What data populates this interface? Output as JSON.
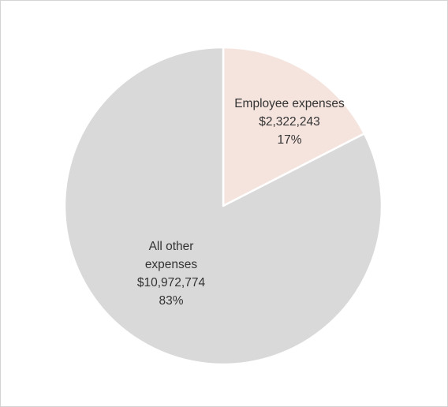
{
  "chart_data": {
    "type": "pie",
    "title": "",
    "slices": [
      {
        "name": "Employee expenses",
        "value": 2322243,
        "value_label": "$2,322,243",
        "percent_label": "17%",
        "name_lines": [
          "Employee expenses"
        ],
        "color": "#f5e4de"
      },
      {
        "name": "All other expenses",
        "value": 10972774,
        "value_label": "$10,972,774",
        "percent_label": "83%",
        "name_lines": [
          "All other",
          "expenses"
        ],
        "color": "#d9d9d9"
      }
    ],
    "start_angle": "12 o'clock",
    "direction": "clockwise",
    "legend": "none",
    "slice_border_color": "#ffffff"
  }
}
